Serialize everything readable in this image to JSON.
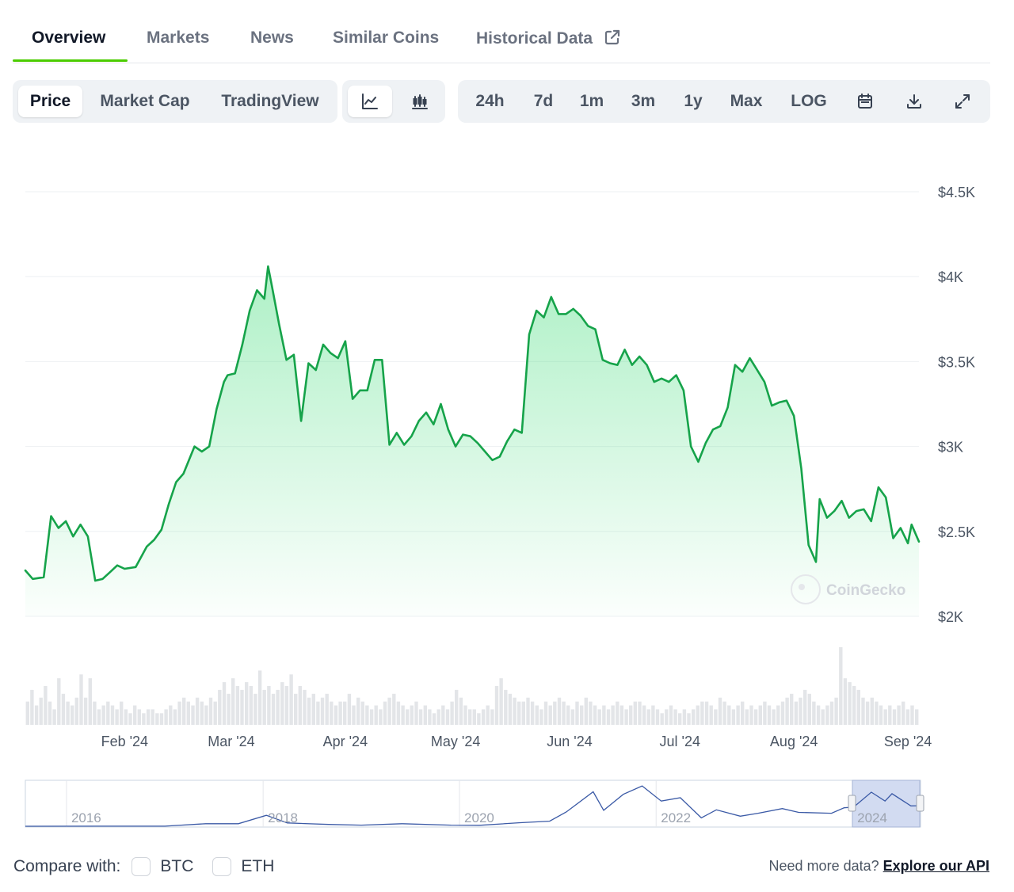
{
  "tabs": [
    {
      "label": "Overview"
    },
    {
      "label": "Markets"
    },
    {
      "label": "News"
    },
    {
      "label": "Similar Coins"
    },
    {
      "label": "Historical Data"
    }
  ],
  "active_tab": "Overview",
  "toolbar": {
    "chart_modes": [
      "Price",
      "Market Cap",
      "TradingView"
    ],
    "active_mode": "Price",
    "chart_styles": [
      "line-chart-icon",
      "candlestick-icon"
    ],
    "active_style": "line-chart-icon",
    "ranges": [
      "24h",
      "7d",
      "1m",
      "3m",
      "1y",
      "Max",
      "LOG"
    ],
    "tool_icons": [
      "calendar-icon",
      "download-icon",
      "expand-icon"
    ]
  },
  "colors": {
    "line": "#16a34a",
    "fill_top": "#4ade80",
    "active_tab_underline": "#4bcc00",
    "navigator_line": "#3b5aa6",
    "navigator_selection": "#c7d2ee"
  },
  "watermark": "CoinGecko",
  "chart_data": {
    "type": "area",
    "y_tick_labels": [
      "$4.5K",
      "$4K",
      "$3.5K",
      "$3K",
      "$2.5K",
      "$2K"
    ],
    "y_ticks": [
      4500,
      4000,
      3500,
      3000,
      2500,
      2000
    ],
    "ylim": [
      2000,
      4500
    ],
    "x_tick_labels": [
      "Feb '24",
      "Mar '24",
      "Apr '24",
      "May '24",
      "Jun '24",
      "Jul '24",
      "Aug '24",
      "Sep '24"
    ],
    "x_ticks": [
      "2024-02-01",
      "2024-03-01",
      "2024-04-01",
      "2024-05-01",
      "2024-06-01",
      "2024-07-01",
      "2024-08-01",
      "2024-09-01"
    ],
    "xlim": [
      "2024-01-05",
      "2024-09-04"
    ],
    "grid": true,
    "series": [
      {
        "values": [
          [
            "2024-01-05",
            2270
          ],
          [
            "2024-01-07",
            2220
          ],
          [
            "2024-01-10",
            2230
          ],
          [
            "2024-01-12",
            2590
          ],
          [
            "2024-01-14",
            2520
          ],
          [
            "2024-01-16",
            2560
          ],
          [
            "2024-01-18",
            2470
          ],
          [
            "2024-01-20",
            2540
          ],
          [
            "2024-01-22",
            2470
          ],
          [
            "2024-01-24",
            2210
          ],
          [
            "2024-01-26",
            2220
          ],
          [
            "2024-01-28",
            2260
          ],
          [
            "2024-01-30",
            2300
          ],
          [
            "2024-02-01",
            2280
          ],
          [
            "2024-02-04",
            2290
          ],
          [
            "2024-02-07",
            2410
          ],
          [
            "2024-02-09",
            2450
          ],
          [
            "2024-02-11",
            2510
          ],
          [
            "2024-02-13",
            2660
          ],
          [
            "2024-02-15",
            2790
          ],
          [
            "2024-02-17",
            2840
          ],
          [
            "2024-02-20",
            3000
          ],
          [
            "2024-02-22",
            2970
          ],
          [
            "2024-02-24",
            3000
          ],
          [
            "2024-02-26",
            3220
          ],
          [
            "2024-02-28",
            3380
          ],
          [
            "2024-02-29",
            3420
          ],
          [
            "2024-03-02",
            3430
          ],
          [
            "2024-03-04",
            3600
          ],
          [
            "2024-03-06",
            3800
          ],
          [
            "2024-03-08",
            3920
          ],
          [
            "2024-03-10",
            3870
          ],
          [
            "2024-03-11",
            4060
          ],
          [
            "2024-03-12",
            3950
          ],
          [
            "2024-03-14",
            3720
          ],
          [
            "2024-03-16",
            3510
          ],
          [
            "2024-03-18",
            3540
          ],
          [
            "2024-03-20",
            3150
          ],
          [
            "2024-03-22",
            3490
          ],
          [
            "2024-03-24",
            3450
          ],
          [
            "2024-03-26",
            3600
          ],
          [
            "2024-03-28",
            3550
          ],
          [
            "2024-03-30",
            3520
          ],
          [
            "2024-04-01",
            3620
          ],
          [
            "2024-04-03",
            3280
          ],
          [
            "2024-04-05",
            3330
          ],
          [
            "2024-04-07",
            3330
          ],
          [
            "2024-04-09",
            3510
          ],
          [
            "2024-04-11",
            3510
          ],
          [
            "2024-04-13",
            3010
          ],
          [
            "2024-04-15",
            3080
          ],
          [
            "2024-04-17",
            3010
          ],
          [
            "2024-04-19",
            3060
          ],
          [
            "2024-04-21",
            3150
          ],
          [
            "2024-04-23",
            3200
          ],
          [
            "2024-04-25",
            3130
          ],
          [
            "2024-04-27",
            3250
          ],
          [
            "2024-04-29",
            3100
          ],
          [
            "2024-05-01",
            3000
          ],
          [
            "2024-05-03",
            3070
          ],
          [
            "2024-05-05",
            3060
          ],
          [
            "2024-05-07",
            3020
          ],
          [
            "2024-05-09",
            2970
          ],
          [
            "2024-05-11",
            2920
          ],
          [
            "2024-05-13",
            2940
          ],
          [
            "2024-05-15",
            3030
          ],
          [
            "2024-05-17",
            3100
          ],
          [
            "2024-05-19",
            3080
          ],
          [
            "2024-05-21",
            3660
          ],
          [
            "2024-05-23",
            3800
          ],
          [
            "2024-05-25",
            3760
          ],
          [
            "2024-05-27",
            3880
          ],
          [
            "2024-05-29",
            3780
          ],
          [
            "2024-05-31",
            3780
          ],
          [
            "2024-06-02",
            3810
          ],
          [
            "2024-06-04",
            3770
          ],
          [
            "2024-06-06",
            3710
          ],
          [
            "2024-06-08",
            3690
          ],
          [
            "2024-06-10",
            3510
          ],
          [
            "2024-06-12",
            3490
          ],
          [
            "2024-06-14",
            3480
          ],
          [
            "2024-06-16",
            3570
          ],
          [
            "2024-06-18",
            3480
          ],
          [
            "2024-06-20",
            3530
          ],
          [
            "2024-06-22",
            3480
          ],
          [
            "2024-06-24",
            3380
          ],
          [
            "2024-06-26",
            3400
          ],
          [
            "2024-06-28",
            3380
          ],
          [
            "2024-06-30",
            3420
          ],
          [
            "2024-07-02",
            3330
          ],
          [
            "2024-07-04",
            3000
          ],
          [
            "2024-07-06",
            2910
          ],
          [
            "2024-07-08",
            3020
          ],
          [
            "2024-07-10",
            3100
          ],
          [
            "2024-07-12",
            3120
          ],
          [
            "2024-07-14",
            3230
          ],
          [
            "2024-07-16",
            3480
          ],
          [
            "2024-07-18",
            3440
          ],
          [
            "2024-07-20",
            3520
          ],
          [
            "2024-07-22",
            3450
          ],
          [
            "2024-07-24",
            3380
          ],
          [
            "2024-07-26",
            3240
          ],
          [
            "2024-07-28",
            3260
          ],
          [
            "2024-07-30",
            3270
          ],
          [
            "2024-08-01",
            3180
          ],
          [
            "2024-08-03",
            2870
          ],
          [
            "2024-08-05",
            2420
          ],
          [
            "2024-08-07",
            2320
          ],
          [
            "2024-08-08",
            2690
          ],
          [
            "2024-08-10",
            2580
          ],
          [
            "2024-08-12",
            2620
          ],
          [
            "2024-08-14",
            2680
          ],
          [
            "2024-08-16",
            2580
          ],
          [
            "2024-08-18",
            2620
          ],
          [
            "2024-08-20",
            2630
          ],
          [
            "2024-08-22",
            2560
          ],
          [
            "2024-08-24",
            2760
          ],
          [
            "2024-08-26",
            2700
          ],
          [
            "2024-08-28",
            2460
          ],
          [
            "2024-08-30",
            2520
          ],
          [
            "2024-09-01",
            2430
          ],
          [
            "2024-09-02",
            2540
          ],
          [
            "2024-09-04",
            2440
          ]
        ]
      }
    ],
    "volume_relative": [
      0.3,
      0.45,
      0.25,
      0.35,
      0.5,
      0.3,
      0.2,
      0.6,
      0.4,
      0.3,
      0.25,
      0.35,
      0.65,
      0.35,
      0.6,
      0.3,
      0.2,
      0.25,
      0.3,
      0.25,
      0.2,
      0.3,
      0.2,
      0.15,
      0.25,
      0.2,
      0.15,
      0.2,
      0.2,
      0.15,
      0.15,
      0.2,
      0.25,
      0.2,
      0.3,
      0.35,
      0.3,
      0.25,
      0.35,
      0.3,
      0.25,
      0.35,
      0.3,
      0.45,
      0.55,
      0.4,
      0.6,
      0.5,
      0.45,
      0.55,
      0.5,
      0.4,
      0.7,
      0.45,
      0.5,
      0.4,
      0.45,
      0.55,
      0.5,
      0.65,
      0.4,
      0.5,
      0.45,
      0.35,
      0.4,
      0.3,
      0.35,
      0.4,
      0.3,
      0.25,
      0.3,
      0.3,
      0.4,
      0.25,
      0.35,
      0.3,
      0.25,
      0.2,
      0.25,
      0.2,
      0.3,
      0.35,
      0.4,
      0.3,
      0.25,
      0.2,
      0.25,
      0.3,
      0.2,
      0.25,
      0.2,
      0.15,
      0.2,
      0.25,
      0.2,
      0.3,
      0.45,
      0.35,
      0.25,
      0.2,
      0.2,
      0.15,
      0.2,
      0.25,
      0.2,
      0.5,
      0.6,
      0.45,
      0.4,
      0.35,
      0.3,
      0.3,
      0.35,
      0.3,
      0.25,
      0.2,
      0.3,
      0.25,
      0.3,
      0.35,
      0.3,
      0.25,
      0.2,
      0.3,
      0.25,
      0.35,
      0.3,
      0.25,
      0.2,
      0.25,
      0.2,
      0.25,
      0.3,
      0.25,
      0.2,
      0.25,
      0.3,
      0.3,
      0.25,
      0.2,
      0.25,
      0.2,
      0.15,
      0.2,
      0.25,
      0.2,
      0.15,
      0.2,
      0.15,
      0.2,
      0.25,
      0.3,
      0.3,
      0.25,
      0.2,
      0.35,
      0.3,
      0.25,
      0.2,
      0.25,
      0.3,
      0.2,
      0.25,
      0.2,
      0.25,
      0.3,
      0.25,
      0.2,
      0.25,
      0.3,
      0.35,
      0.4,
      0.3,
      0.35,
      0.45,
      0.4,
      0.3,
      0.25,
      0.2,
      0.25,
      0.3,
      0.35,
      1.0,
      0.6,
      0.55,
      0.5,
      0.45,
      0.35,
      0.3,
      0.35,
      0.3,
      0.25,
      0.2,
      0.25,
      0.2,
      0.25,
      0.3,
      0.2,
      0.25,
      0.2
    ],
    "navigator": {
      "tick_labels": [
        "2016",
        "2018",
        "2020",
        "2022",
        "2024"
      ],
      "values": [
        [
          "2015-08-01",
          1
        ],
        [
          "2016-06-01",
          14
        ],
        [
          "2017-01-01",
          8
        ],
        [
          "2017-06-01",
          300
        ],
        [
          "2017-10-01",
          300
        ],
        [
          "2018-01-13",
          1300
        ],
        [
          "2018-04-01",
          400
        ],
        [
          "2018-09-01",
          220
        ],
        [
          "2019-01-01",
          130
        ],
        [
          "2019-06-01",
          300
        ],
        [
          "2019-12-01",
          130
        ],
        [
          "2020-03-15",
          110
        ],
        [
          "2020-08-15",
          420
        ],
        [
          "2020-12-01",
          600
        ],
        [
          "2021-02-01",
          1700
        ],
        [
          "2021-05-12",
          4100
        ],
        [
          "2021-06-20",
          1900
        ],
        [
          "2021-09-01",
          3800
        ],
        [
          "2021-11-10",
          4800
        ],
        [
          "2022-01-20",
          3000
        ],
        [
          "2022-04-01",
          3400
        ],
        [
          "2022-06-18",
          1000
        ],
        [
          "2022-08-13",
          1950
        ],
        [
          "2022-11-10",
          1200
        ],
        [
          "2023-01-15",
          1550
        ],
        [
          "2023-04-15",
          2100
        ],
        [
          "2023-06-15",
          1650
        ],
        [
          "2023-10-15",
          1550
        ],
        [
          "2023-12-01",
          2200
        ],
        [
          "2024-01-05",
          2270
        ],
        [
          "2024-03-11",
          4060
        ],
        [
          "2024-05-01",
          3000
        ],
        [
          "2024-05-27",
          3880
        ],
        [
          "2024-08-05",
          2420
        ],
        [
          "2024-09-04",
          2440
        ]
      ]
    }
  },
  "compare": {
    "label": "Compare with:",
    "options": [
      "BTC",
      "ETH"
    ]
  },
  "api": {
    "text": "Need more data?",
    "link": "Explore our API"
  }
}
